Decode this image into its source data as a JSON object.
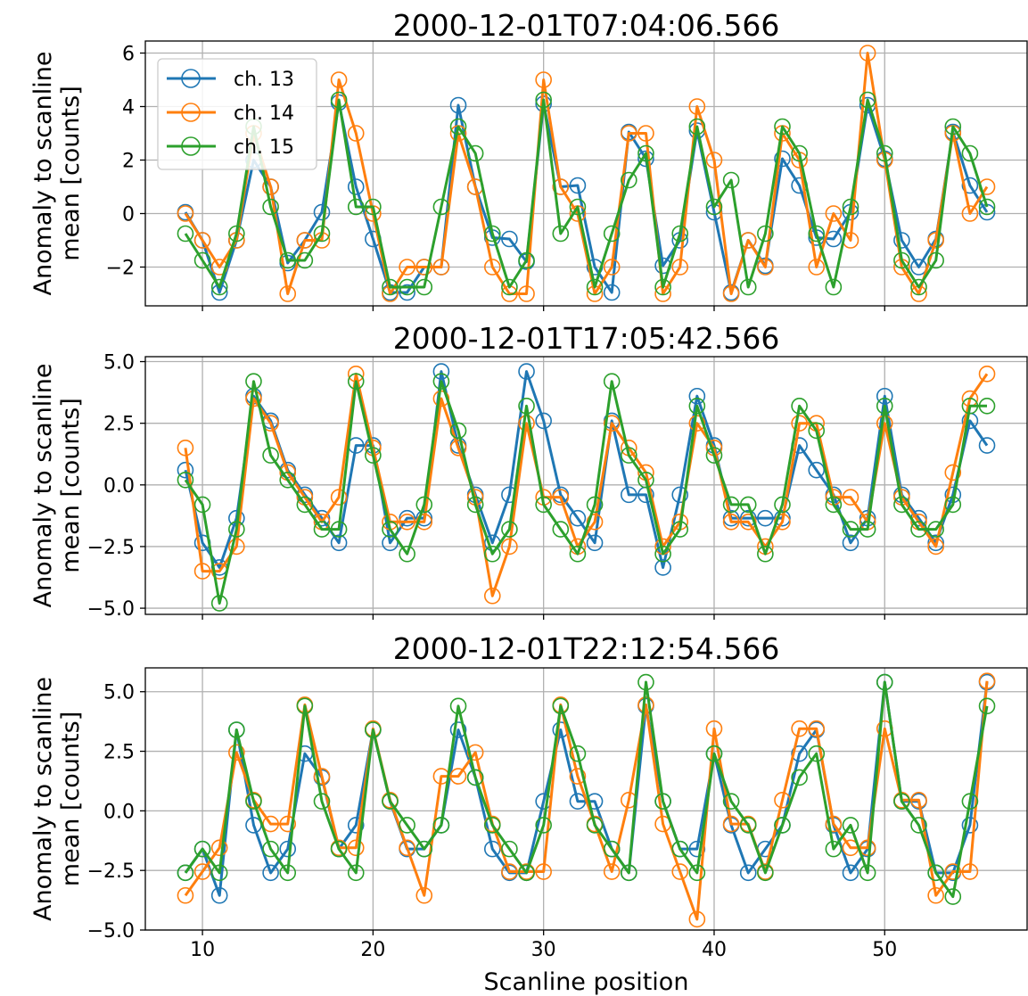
{
  "chart_data": [
    {
      "type": "line",
      "title": "2000-12-01T07:04:06.566",
      "xlabel": "",
      "ylabel": "Anomaly to scanline mean [counts]",
      "xlim": [
        6.65,
        58.35
      ],
      "ylim": [
        -3.45,
        6.45
      ],
      "yticks": [
        -2,
        0,
        2,
        4,
        6
      ],
      "ytick_labels": [
        "−2",
        "0",
        "2",
        "4",
        "6"
      ],
      "xticks": [
        10,
        20,
        30,
        40,
        50
      ],
      "xtick_labels": [
        "",
        "",
        "",
        "",
        ""
      ],
      "grid": true,
      "legend": "upper-left",
      "x": [
        9,
        10,
        11,
        12,
        13,
        14,
        15,
        16,
        17,
        18,
        19,
        20,
        21,
        22,
        23,
        24,
        25,
        26,
        27,
        28,
        29,
        30,
        31,
        32,
        33,
        34,
        35,
        36,
        37,
        38,
        39,
        40,
        41,
        42,
        43,
        44,
        45,
        46,
        47,
        48,
        49,
        50,
        51,
        52,
        53,
        54,
        55,
        56
      ],
      "series": [
        {
          "name": "ch. 13",
          "color": "#1f77b4",
          "values": [
            0.05,
            -1,
            -2.95,
            -1,
            2,
            1,
            -1.85,
            -1,
            0.05,
            4.15,
            1,
            -0.95,
            -2.95,
            -2.95,
            -2,
            -2,
            4.05,
            1,
            -0.9,
            -0.95,
            -1.8,
            4.1,
            1,
            1.05,
            -2,
            -2.95,
            3.05,
            2.05,
            -1.95,
            -1,
            3.1,
            0.05,
            -2.95,
            -1,
            -1.95,
            2.05,
            1.05,
            -0.9,
            -0.95,
            0.05,
            4.05,
            2.05,
            -1,
            -2,
            -0.95,
            3.05,
            1.05,
            0.05
          ]
        },
        {
          "name": "ch. 14",
          "color": "#ff7f0e",
          "values": [
            0,
            -1,
            -2,
            -1,
            3,
            1,
            -3,
            -1,
            -1,
            5,
            3,
            0,
            -3,
            -2,
            -2,
            -2,
            3,
            1,
            -2,
            -3,
            -3,
            5,
            1,
            0,
            -3,
            -2,
            3,
            3,
            -3,
            -2,
            4,
            2,
            -3,
            -1,
            -2,
            3,
            2,
            -2,
            0,
            -1,
            6,
            2,
            -2,
            -3,
            -1,
            3,
            0,
            1
          ]
        },
        {
          "name": "ch. 15",
          "color": "#2ca02c",
          "values": [
            -0.75,
            -1.75,
            -2.75,
            -0.75,
            3.25,
            0.25,
            -1.75,
            -1.75,
            -0.75,
            4.25,
            0.25,
            0.25,
            -2.75,
            -2.75,
            -2.75,
            0.25,
            3.25,
            2.25,
            -0.75,
            -2.75,
            -1.75,
            4.25,
            -0.75,
            0.25,
            -2.75,
            -0.75,
            1.25,
            2.25,
            -2.75,
            -0.75,
            3.25,
            0.25,
            1.25,
            -2.75,
            -0.75,
            3.25,
            2.25,
            -0.75,
            -2.75,
            0.25,
            4.25,
            2.25,
            -1.75,
            -2.75,
            -1.75,
            3.25,
            2.25,
            0.25
          ]
        }
      ]
    },
    {
      "type": "line",
      "title": "2000-12-01T17:05:42.566",
      "xlabel": "",
      "ylabel": "Anomaly to scanline mean [counts]",
      "xlim": [
        6.65,
        58.35
      ],
      "ylim": [
        -5.25,
        5.2
      ],
      "yticks": [
        -5.0,
        -2.5,
        0.0,
        2.5,
        5.0
      ],
      "ytick_labels": [
        "−5.0",
        "−2.5",
        "0.0",
        "2.5",
        "5.0"
      ],
      "xticks": [
        10,
        20,
        30,
        40,
        50
      ],
      "xtick_labels": [
        "",
        "",
        "",
        "",
        ""
      ],
      "grid": true,
      "x": [
        9,
        10,
        11,
        12,
        13,
        14,
        15,
        16,
        17,
        18,
        19,
        20,
        21,
        22,
        23,
        24,
        25,
        26,
        27,
        28,
        29,
        30,
        31,
        32,
        33,
        34,
        35,
        36,
        37,
        38,
        39,
        40,
        41,
        42,
        43,
        44,
        45,
        46,
        47,
        48,
        49,
        50,
        51,
        52,
        53,
        54,
        55,
        56
      ],
      "series": [
        {
          "name": "ch. 13",
          "color": "#1f77b4",
          "values": [
            0.6,
            -2.35,
            -3.35,
            -1.35,
            3.6,
            2.6,
            0.6,
            -0.4,
            -1.35,
            -2.35,
            1.6,
            1.6,
            -2.35,
            -1.35,
            -1.35,
            4.6,
            1.6,
            -0.4,
            -2.35,
            -0.4,
            4.6,
            2.6,
            -0.4,
            -1.35,
            -2.35,
            2.6,
            -0.4,
            -0.4,
            -3.35,
            -0.4,
            3.6,
            1.6,
            -1.35,
            -1.35,
            -1.35,
            -1.35,
            1.6,
            0.6,
            -0.4,
            -2.35,
            -1.35,
            3.6,
            -0.4,
            -1.35,
            -2.35,
            -0.4,
            2.6,
            1.6
          ]
        },
        {
          "name": "ch. 14",
          "color": "#ff7f0e",
          "values": [
            1.5,
            -3.5,
            -3.5,
            -2.5,
            3.5,
            2.5,
            0.5,
            -0.5,
            -1.5,
            -0.5,
            4.5,
            1.5,
            -1.5,
            -1.5,
            -1.5,
            3.5,
            1.5,
            -0.5,
            -4.5,
            -2.5,
            2.5,
            -0.5,
            -0.5,
            -2.5,
            -1.5,
            2.5,
            1.5,
            0.5,
            -2.5,
            -1.5,
            2.5,
            1.5,
            -1.5,
            -1.5,
            -2.5,
            -1.5,
            2.5,
            2.5,
            -0.5,
            -0.5,
            -1.5,
            2.5,
            -0.5,
            -1.5,
            -2.5,
            0.5,
            3.5,
            4.5
          ]
        },
        {
          "name": "ch. 15",
          "color": "#2ca02c",
          "values": [
            0.2,
            -0.8,
            -4.8,
            -1.8,
            4.2,
            1.2,
            0.2,
            -0.8,
            -1.8,
            -1.8,
            4.2,
            1.2,
            -1.8,
            -2.8,
            -0.8,
            4.2,
            2.2,
            -0.8,
            -2.8,
            -1.8,
            3.2,
            -0.8,
            -1.8,
            -2.8,
            -0.8,
            4.2,
            1.2,
            0.2,
            -2.8,
            -1.8,
            3.2,
            1.2,
            -0.8,
            -0.8,
            -2.8,
            -0.8,
            3.2,
            2.2,
            -0.8,
            -1.8,
            -1.8,
            3.2,
            -0.8,
            -1.8,
            -1.8,
            -0.8,
            3.2,
            3.2
          ]
        }
      ]
    },
    {
      "type": "line",
      "title": "2000-12-01T22:12:54.566",
      "xlabel": "Scanline position",
      "ylabel": "Anomaly to scanline mean [counts]",
      "xlim": [
        6.65,
        58.35
      ],
      "ylim": [
        -5.0,
        6.0
      ],
      "yticks": [
        -5.0,
        -2.5,
        0.0,
        2.5,
        5.0
      ],
      "ytick_labels": [
        "−5.0",
        "−2.5",
        "0.0",
        "2.5",
        "5.0"
      ],
      "xticks": [
        10,
        20,
        30,
        40,
        50
      ],
      "xtick_labels": [
        "10",
        "20",
        "30",
        "40",
        "50"
      ],
      "grid": true,
      "x": [
        9,
        10,
        11,
        12,
        13,
        14,
        15,
        16,
        17,
        18,
        19,
        20,
        21,
        22,
        23,
        24,
        25,
        26,
        27,
        28,
        29,
        30,
        31,
        32,
        33,
        34,
        35,
        36,
        37,
        38,
        39,
        40,
        41,
        42,
        43,
        44,
        45,
        46,
        47,
        48,
        49,
        50,
        51,
        52,
        53,
        54,
        55,
        56
      ],
      "series": [
        {
          "name": "ch. 13",
          "color": "#1f77b4",
          "values": [
            -2.6,
            -1.6,
            -3.55,
            3.4,
            -0.6,
            -2.6,
            -1.6,
            2.4,
            1.4,
            -1.6,
            -0.6,
            3.4,
            0.4,
            -1.6,
            -1.6,
            -0.6,
            3.4,
            1.4,
            -1.6,
            -2.6,
            -2.6,
            0.4,
            3.4,
            0.4,
            0.4,
            -1.6,
            -2.6,
            4.4,
            0.4,
            -1.6,
            -1.6,
            2.4,
            -0.6,
            -2.6,
            -1.6,
            -0.6,
            2.4,
            3.4,
            -0.6,
            -2.6,
            -1.6,
            5.4,
            0.4,
            0.4,
            -2.6,
            -2.6,
            -0.6,
            5.4
          ]
        },
        {
          "name": "ch. 14",
          "color": "#ff7f0e",
          "values": [
            -3.55,
            -2.55,
            -1.55,
            2.45,
            0.45,
            -0.55,
            -0.55,
            4.45,
            1.45,
            -1.55,
            -1.55,
            3.45,
            0.45,
            -1.55,
            -3.55,
            1.45,
            1.45,
            2.45,
            -0.55,
            -2.55,
            -2.55,
            -2.55,
            4.45,
            1.45,
            -0.55,
            -2.55,
            0.45,
            4.45,
            -0.55,
            -2.55,
            -4.55,
            3.45,
            -0.55,
            -0.55,
            -2.55,
            0.45,
            3.45,
            3.45,
            -0.55,
            -1.55,
            -1.55,
            3.45,
            0.45,
            0.45,
            -3.55,
            -2.55,
            -2.55,
            5.45
          ]
        },
        {
          "name": "ch. 15",
          "color": "#2ca02c",
          "values": [
            -2.6,
            -1.6,
            -2.6,
            3.4,
            0.4,
            -1.6,
            -2.6,
            4.4,
            0.4,
            -1.6,
            -2.6,
            3.4,
            0.4,
            -0.6,
            -1.6,
            -0.6,
            4.4,
            1.4,
            -0.6,
            -1.6,
            -2.6,
            -0.6,
            4.4,
            2.4,
            -0.6,
            -1.6,
            -2.6,
            5.4,
            0.4,
            -1.6,
            -2.6,
            2.4,
            0.4,
            -0.6,
            -2.6,
            -0.6,
            1.4,
            2.4,
            -1.6,
            -0.6,
            -2.6,
            5.4,
            0.4,
            -0.6,
            -2.6,
            -3.6,
            0.4,
            4.4
          ]
        }
      ]
    }
  ]
}
